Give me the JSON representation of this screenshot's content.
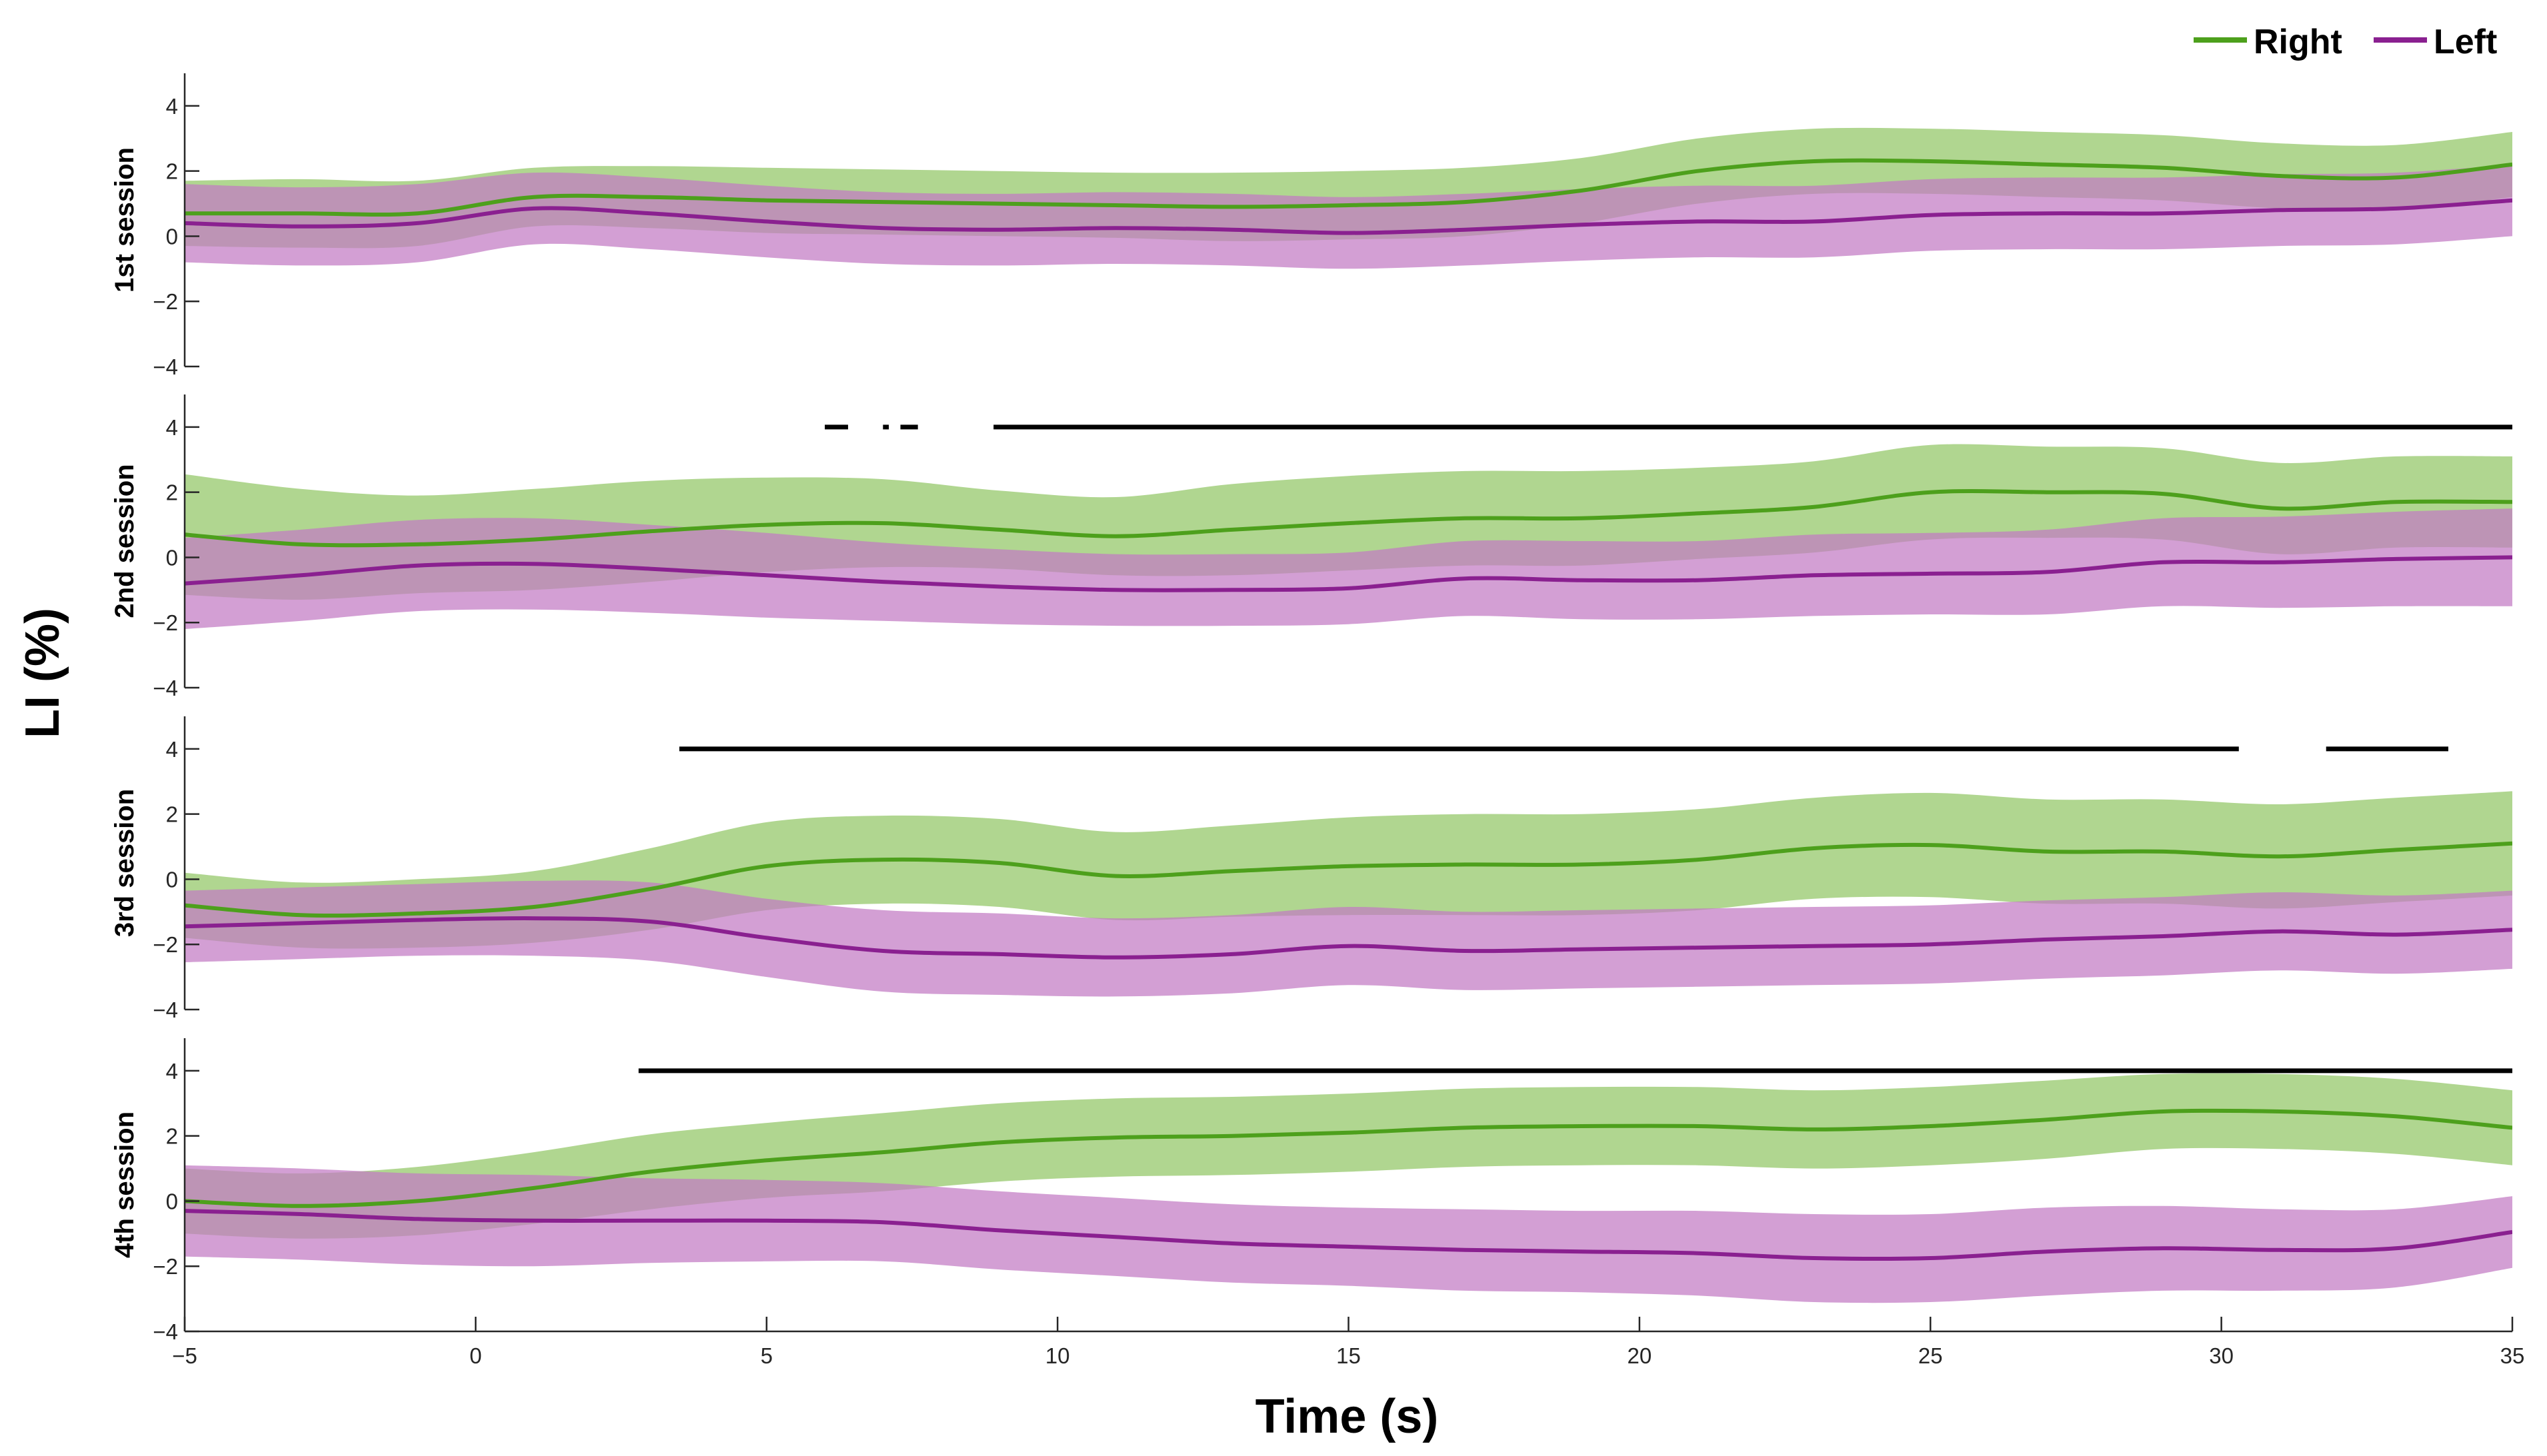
{
  "chart_data": {
    "type": "line",
    "ylabel": "LI (%)",
    "xlabel": "Time (s)",
    "xlim": [
      -5,
      35
    ],
    "ylim": [
      -4,
      5
    ],
    "x_ticks": [
      -5,
      0,
      5,
      10,
      15,
      20,
      25,
      30,
      35
    ],
    "y_ticks": [
      -4,
      -2,
      0,
      2,
      4
    ],
    "x_tick_labels": [
      "−5",
      "0",
      "5",
      "10",
      "15",
      "20",
      "25",
      "30",
      "35"
    ],
    "y_tick_labels": [
      "−4",
      "−2",
      "0",
      "2",
      "4"
    ],
    "colors": {
      "right_line": "#4da01c",
      "right_band": "#9ccc74",
      "left_line": "#8a2090",
      "left_band": "#c27ac4",
      "significance": "#000000"
    },
    "legend": {
      "location": "top-right",
      "entries": [
        {
          "label": "Right",
          "series": "right"
        },
        {
          "label": "Left",
          "series": "left"
        }
      ]
    },
    "panels": [
      {
        "label": "1st session",
        "x": [
          -5,
          -3,
          -1,
          1,
          3,
          5,
          7,
          9,
          11,
          13,
          15,
          17,
          19,
          21,
          23,
          25,
          27,
          29,
          31,
          33,
          35
        ],
        "right": {
          "mean": [
            0.7,
            0.7,
            0.7,
            1.2,
            1.2,
            1.1,
            1.05,
            1.0,
            0.95,
            0.9,
            0.95,
            1.05,
            1.4,
            2.0,
            2.3,
            2.3,
            2.2,
            2.1,
            1.85,
            1.8,
            2.2
          ],
          "sd": [
            1.0,
            1.05,
            1.0,
            0.9,
            0.95,
            1.0,
            1.0,
            1.0,
            1.0,
            1.05,
            1.05,
            1.05,
            1.0,
            1.0,
            1.0,
            1.0,
            1.0,
            1.0,
            1.0,
            1.0,
            1.0
          ]
        },
        "left": {
          "mean": [
            0.4,
            0.3,
            0.4,
            0.85,
            0.7,
            0.45,
            0.25,
            0.2,
            0.25,
            0.2,
            0.1,
            0.2,
            0.35,
            0.45,
            0.45,
            0.65,
            0.7,
            0.7,
            0.8,
            0.85,
            1.1
          ],
          "sd": [
            1.2,
            1.2,
            1.2,
            1.1,
            1.1,
            1.1,
            1.1,
            1.1,
            1.1,
            1.1,
            1.1,
            1.1,
            1.1,
            1.1,
            1.1,
            1.1,
            1.1,
            1.1,
            1.1,
            1.1,
            1.1
          ]
        },
        "significance": []
      },
      {
        "label": "2nd session",
        "x": [
          -5,
          -3,
          -1,
          1,
          3,
          5,
          7,
          9,
          11,
          13,
          15,
          17,
          19,
          21,
          23,
          25,
          27,
          29,
          31,
          33,
          35
        ],
        "right": {
          "mean": [
            0.7,
            0.4,
            0.4,
            0.55,
            0.8,
            1.0,
            1.05,
            0.85,
            0.65,
            0.85,
            1.05,
            1.2,
            1.2,
            1.35,
            1.55,
            2.0,
            2.0,
            1.95,
            1.5,
            1.7,
            1.7
          ],
          "sd": [
            1.85,
            1.7,
            1.5,
            1.55,
            1.55,
            1.45,
            1.35,
            1.2,
            1.2,
            1.4,
            1.45,
            1.45,
            1.45,
            1.4,
            1.4,
            1.45,
            1.4,
            1.4,
            1.4,
            1.4,
            1.4
          ]
        },
        "left": {
          "mean": [
            -0.8,
            -0.55,
            -0.25,
            -0.2,
            -0.35,
            -0.55,
            -0.75,
            -0.9,
            -1.0,
            -1.0,
            -0.95,
            -0.65,
            -0.7,
            -0.7,
            -0.55,
            -0.5,
            -0.45,
            -0.15,
            -0.15,
            -0.05,
            0.0
          ],
          "sd": [
            1.4,
            1.4,
            1.4,
            1.4,
            1.35,
            1.3,
            1.2,
            1.15,
            1.1,
            1.1,
            1.1,
            1.15,
            1.2,
            1.2,
            1.25,
            1.25,
            1.3,
            1.35,
            1.4,
            1.45,
            1.5
          ]
        },
        "significance": [
          [
            6.0,
            6.4
          ],
          [
            7.0,
            7.1
          ],
          [
            7.3,
            7.6
          ],
          [
            8.9,
            35.0
          ]
        ]
      },
      {
        "label": "3rd session",
        "x": [
          -5,
          -3,
          -1,
          1,
          3,
          5,
          7,
          9,
          11,
          13,
          15,
          17,
          19,
          21,
          23,
          25,
          27,
          29,
          31,
          33,
          35
        ],
        "right": {
          "mean": [
            -0.8,
            -1.1,
            -1.05,
            -0.85,
            -0.3,
            0.4,
            0.6,
            0.5,
            0.1,
            0.25,
            0.4,
            0.45,
            0.45,
            0.6,
            0.95,
            1.05,
            0.85,
            0.85,
            0.7,
            0.9,
            1.1
          ],
          "sd": [
            1.0,
            1.0,
            1.05,
            1.1,
            1.25,
            1.35,
            1.35,
            1.35,
            1.35,
            1.4,
            1.5,
            1.55,
            1.55,
            1.55,
            1.55,
            1.6,
            1.6,
            1.6,
            1.6,
            1.6,
            1.6
          ]
        },
        "left": {
          "mean": [
            -1.45,
            -1.35,
            -1.25,
            -1.2,
            -1.3,
            -1.8,
            -2.2,
            -2.3,
            -2.4,
            -2.3,
            -2.05,
            -2.2,
            -2.15,
            -2.1,
            -2.05,
            -2.0,
            -1.85,
            -1.75,
            -1.6,
            -1.7,
            -1.55
          ],
          "sd": [
            1.1,
            1.1,
            1.1,
            1.15,
            1.2,
            1.2,
            1.25,
            1.25,
            1.2,
            1.2,
            1.2,
            1.2,
            1.2,
            1.2,
            1.2,
            1.2,
            1.2,
            1.2,
            1.2,
            1.2,
            1.2
          ]
        },
        "significance": [
          [
            3.5,
            30.3
          ],
          [
            31.8,
            33.9
          ]
        ]
      },
      {
        "label": "4th session",
        "x": [
          -5,
          -3,
          -1,
          1,
          3,
          5,
          7,
          9,
          11,
          13,
          15,
          17,
          19,
          21,
          23,
          25,
          27,
          29,
          31,
          33,
          35
        ],
        "right": {
          "mean": [
            0.0,
            -0.15,
            0.0,
            0.4,
            0.9,
            1.25,
            1.5,
            1.8,
            1.95,
            2.0,
            2.1,
            2.25,
            2.3,
            2.3,
            2.2,
            2.3,
            2.5,
            2.75,
            2.75,
            2.6,
            2.25
          ],
          "sd": [
            1.0,
            1.0,
            1.05,
            1.1,
            1.15,
            1.15,
            1.2,
            1.2,
            1.2,
            1.2,
            1.2,
            1.2,
            1.2,
            1.2,
            1.2,
            1.2,
            1.2,
            1.15,
            1.15,
            1.15,
            1.15
          ]
        },
        "left": {
          "mean": [
            -0.3,
            -0.4,
            -0.55,
            -0.6,
            -0.6,
            -0.6,
            -0.65,
            -0.9,
            -1.1,
            -1.3,
            -1.4,
            -1.5,
            -1.55,
            -1.6,
            -1.75,
            -1.75,
            -1.55,
            -1.45,
            -1.5,
            -1.45,
            -0.95
          ],
          "sd": [
            1.4,
            1.4,
            1.4,
            1.4,
            1.3,
            1.25,
            1.2,
            1.2,
            1.2,
            1.2,
            1.2,
            1.25,
            1.25,
            1.3,
            1.35,
            1.35,
            1.35,
            1.3,
            1.25,
            1.2,
            1.1
          ]
        },
        "significance": [
          [
            2.8,
            35.0
          ]
        ]
      }
    ]
  }
}
